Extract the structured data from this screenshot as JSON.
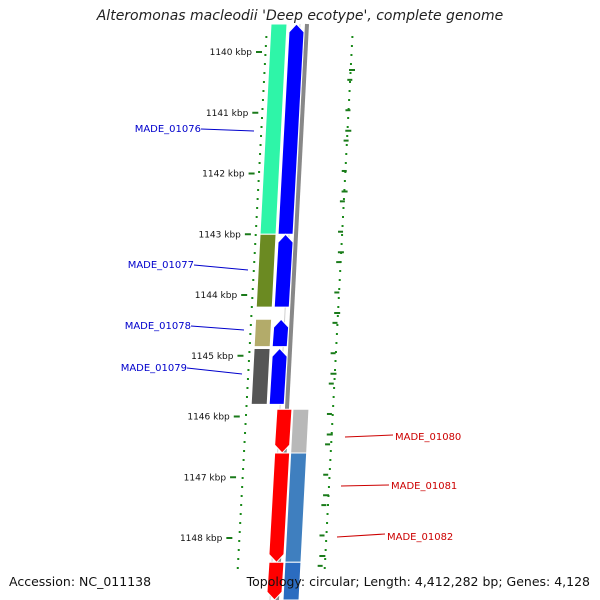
{
  "title": "Alteromonas macleodii 'Deep ecotype', complete genome",
  "footer": {
    "accession": "Accession: NC_011138",
    "topology": "Topology: circular; Length: 4,412,282 bp; Genes: 4,128"
  },
  "colors": {
    "tick": "#1a7a1a",
    "dots": "#1a8a1a",
    "backbone": "#888888",
    "forward_gene": "#0000ff",
    "reverse_gene": "#ff0000",
    "forward_label": "#0000cc",
    "reverse_label": "#cc0000"
  },
  "ticks": [
    {
      "label": "1140 kbp"
    },
    {
      "label": "1141 kbp"
    },
    {
      "label": "1142 kbp"
    },
    {
      "label": "1143 kbp"
    },
    {
      "label": "1144 kbp"
    },
    {
      "label": "1145 kbp"
    },
    {
      "label": "1146 kbp"
    },
    {
      "label": "1147 kbp"
    },
    {
      "label": "1148 kbp"
    }
  ],
  "genes": [
    {
      "id": "MADE_01076",
      "strand": "forward",
      "start_kbp": 1139.5,
      "end_kbp": 1143.0,
      "cog_color": "#2ef5a8"
    },
    {
      "id": "MADE_01077",
      "strand": "forward",
      "start_kbp": 1143.0,
      "end_kbp": 1144.2,
      "cog_color": "#6b8a22"
    },
    {
      "id": "MADE_01078",
      "strand": "forward",
      "start_kbp": 1144.4,
      "end_kbp": 1144.85,
      "cog_color": "#b3ab6a"
    },
    {
      "id": "MADE_01079",
      "strand": "forward",
      "start_kbp": 1144.88,
      "end_kbp": 1145.8,
      "cog_color": "#555555"
    },
    {
      "id": "MADE_01080",
      "strand": "reverse",
      "start_kbp": 1145.88,
      "end_kbp": 1146.6,
      "cog_color": "#b8b8b8"
    },
    {
      "id": "MADE_01081",
      "strand": "reverse",
      "start_kbp": 1146.6,
      "end_kbp": 1148.4,
      "cog_color": "#3f7fbf"
    },
    {
      "id": "MADE_01082",
      "strand": "reverse",
      "start_kbp": 1148.4,
      "end_kbp": 1149.2,
      "cog_color": "#2b6cc0"
    }
  ],
  "gene_labels": [
    {
      "id": "MADE_01076",
      "strand": "forward",
      "text": "MADE_01076"
    },
    {
      "id": "MADE_01077",
      "strand": "forward",
      "text": "MADE_01077"
    },
    {
      "id": "MADE_01078",
      "strand": "forward",
      "text": "MADE_01078"
    },
    {
      "id": "MADE_01079",
      "strand": "forward",
      "text": "MADE_01079"
    },
    {
      "id": "MADE_01080",
      "strand": "reverse",
      "text": "MADE_01080"
    },
    {
      "id": "MADE_01081",
      "strand": "reverse",
      "text": "MADE_01081"
    },
    {
      "id": "MADE_01082",
      "strand": "reverse",
      "text": "MADE_01082"
    }
  ]
}
